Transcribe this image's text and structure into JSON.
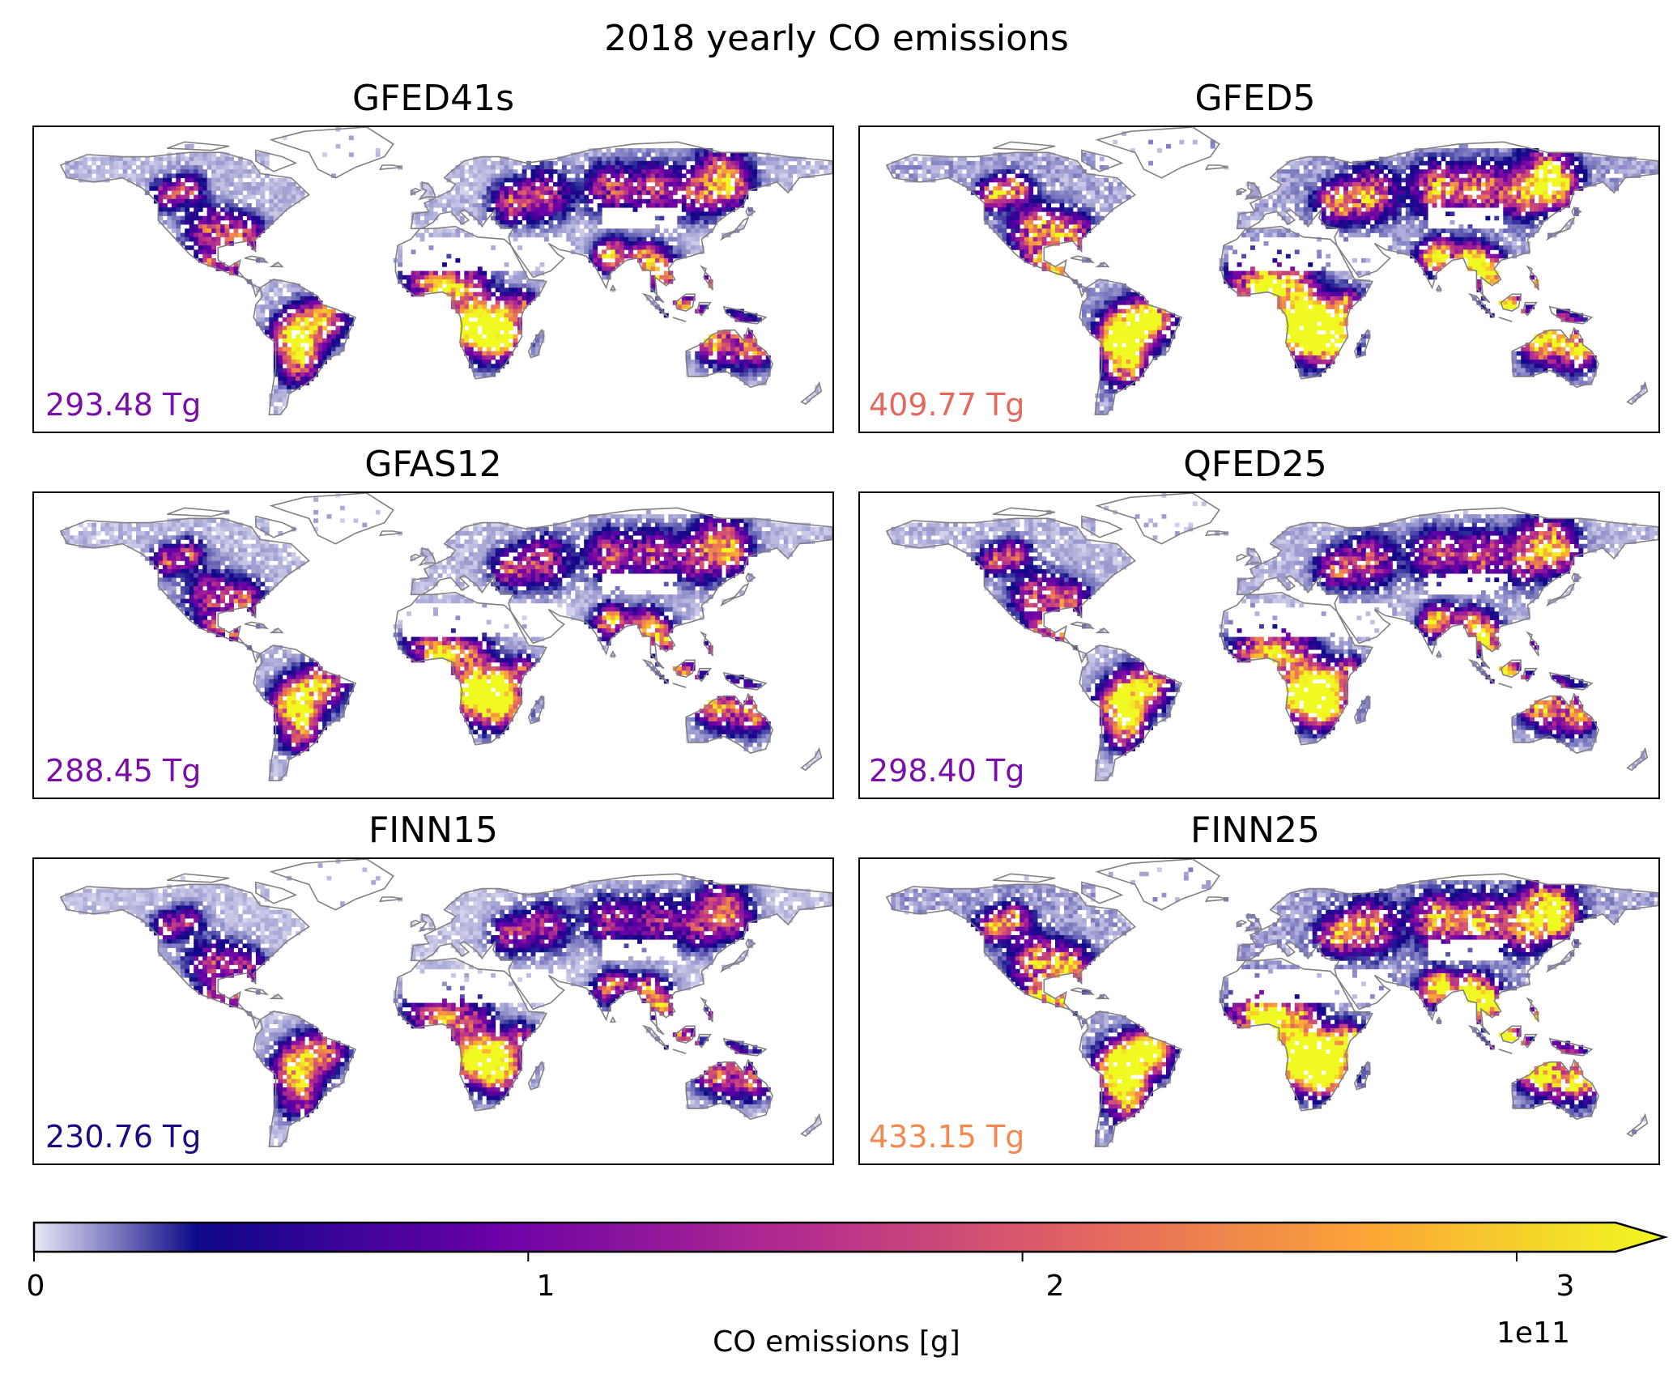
{
  "title": "2018 yearly CO emissions",
  "panels": [
    {
      "name": "GFED41s",
      "total": "293.48 Tg",
      "total_color": "#7a0fa8"
    },
    {
      "name": "GFED5",
      "total": "409.77 Tg",
      "total_color": "#e5685e"
    },
    {
      "name": "GFAS12",
      "total": "288.45 Tg",
      "total_color": "#7a0fa8"
    },
    {
      "name": "QFED25",
      "total": "298.40 Tg",
      "total_color": "#7a0fa8"
    },
    {
      "name": "FINN15",
      "total": "230.76 Tg",
      "total_color": "#1d0b86"
    },
    {
      "name": "FINN25",
      "total": "433.15 Tg",
      "total_color": "#f28a4f"
    }
  ],
  "colorbar": {
    "label": "CO emissions [g]",
    "exponent": "1e11",
    "ticks": [
      "0",
      "1",
      "2",
      "3"
    ],
    "tick_values": [
      0,
      1,
      2,
      3
    ],
    "vmin": 0,
    "vmax": 3.2,
    "extend": "max",
    "colormap": "plasma (low end lightened)",
    "colors": [
      "#e8e8f6",
      "#0d0887",
      "#6a00a8",
      "#b12a90",
      "#e16462",
      "#fca636",
      "#f0f921"
    ]
  },
  "map": {
    "projection": "PlateCarree",
    "coastline_color": "#808080"
  }
}
